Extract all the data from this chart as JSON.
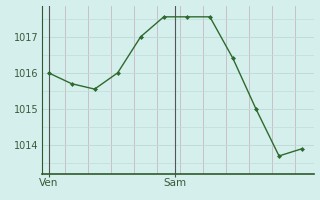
{
  "x": [
    0,
    1,
    2,
    3,
    4,
    5,
    6,
    7,
    8,
    9,
    10,
    11
  ],
  "y": [
    1016.0,
    1015.7,
    1015.55,
    1016.0,
    1017.0,
    1017.55,
    1017.55,
    1017.55,
    1016.4,
    1015.0,
    1013.7,
    1013.9
  ],
  "ven_x": 0,
  "sam_x": 5.5,
  "yticks": [
    1014,
    1015,
    1016,
    1017
  ],
  "ylim": [
    1013.2,
    1017.85
  ],
  "xlim": [
    -0.3,
    11.5
  ],
  "bg_color": "#d5efed",
  "line_color": "#2d6a2d",
  "marker_color": "#2d6a2d",
  "grid_major_color": "#c0dbd8",
  "grid_minor_color": "#c8e4e2",
  "vline_dark_color": "#555555",
  "vline_light_color": "#c8b8c0",
  "label_fontsize": 7.5,
  "tick_fontsize": 7
}
